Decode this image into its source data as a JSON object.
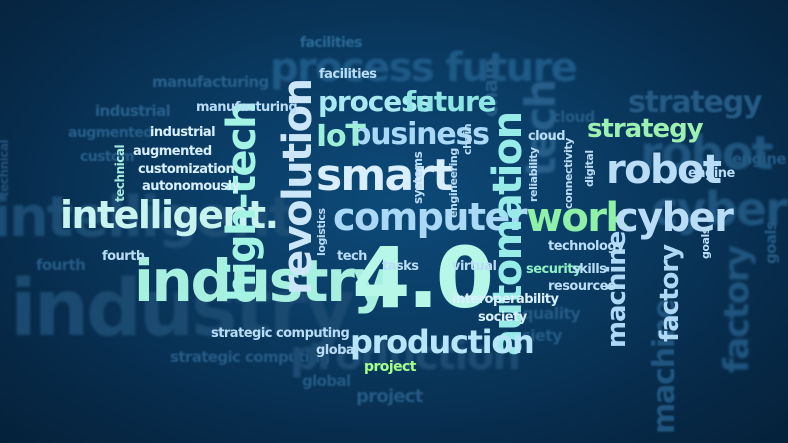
{
  "colors": {
    "background": "#0a3d66",
    "light_blue": "#9fd3f5",
    "pale_blue": "#cfe9fb",
    "cyan": "#8ff2ee",
    "green": "#8ef0a8",
    "lime": "#a6ff8a",
    "ghost": "#2a6a96"
  },
  "words": [
    {
      "text": "industry",
      "color": "#a7f0e0",
      "size": 58,
      "weight": "bold",
      "rot": 0
    },
    {
      "text": "4.0",
      "color": "#b7f7e8",
      "size": 84,
      "weight": "bold",
      "rot": 0
    },
    {
      "text": "intelligent.",
      "color": "#c8f4f0",
      "size": 38,
      "weight": "bold",
      "rot": 0
    },
    {
      "text": "computer",
      "color": "#a9d9f7",
      "size": 38,
      "weight": "bold",
      "rot": 0
    },
    {
      "text": "smart",
      "color": "#d9efff",
      "size": 44,
      "weight": "bold",
      "rot": 0
    },
    {
      "text": "revolution",
      "color": "#cde7fa",
      "size": 40,
      "weight": "bold",
      "rot": -90
    },
    {
      "text": "high-tech",
      "color": "#a4f4e6",
      "size": 40,
      "weight": "bold",
      "rot": -90
    },
    {
      "text": "automation",
      "color": "#98ece8",
      "size": 40,
      "weight": "bold",
      "rot": -90
    },
    {
      "text": "work",
      "color": "#8ff0a8",
      "size": 40,
      "weight": "bold",
      "rot": 0
    },
    {
      "text": "robot",
      "color": "#b9ddf7",
      "size": 40,
      "weight": "bold",
      "rot": 0
    },
    {
      "text": "cyber",
      "color": "#b9ddf7",
      "size": 40,
      "weight": "bold",
      "rot": 0
    },
    {
      "text": "production",
      "color": "#b7e6fb",
      "size": 32,
      "weight": "bold",
      "rot": 0
    },
    {
      "text": "business",
      "color": "#a9d9f7",
      "size": 30,
      "weight": "bold",
      "rot": 0
    },
    {
      "text": "process",
      "color": "#a9e9f2",
      "size": 28,
      "weight": "bold",
      "rot": 0
    },
    {
      "text": "future",
      "color": "#8ee6e4",
      "size": 28,
      "weight": "bold",
      "rot": 0
    },
    {
      "text": "IoT",
      "color": "#9df0d8",
      "size": 30,
      "weight": "bold",
      "rot": 0
    },
    {
      "text": "strategy",
      "color": "#9cf0b2",
      "size": 26,
      "weight": "bold",
      "rot": 0
    },
    {
      "text": "machine",
      "color": "#aed9f6",
      "size": 26,
      "weight": "bold",
      "rot": -90
    },
    {
      "text": "factory",
      "color": "#aed9f6",
      "size": 26,
      "weight": "bold",
      "rot": -90
    },
    {
      "text": "facilities",
      "color": "#b9ddf7",
      "size": 13,
      "weight": "bold",
      "rot": 0
    },
    {
      "text": "manufacturing",
      "color": "#b9ddf7",
      "size": 13,
      "weight": "bold",
      "rot": 0
    },
    {
      "text": "industrial",
      "color": "#d8f0ff",
      "size": 13,
      "weight": "bold",
      "rot": 0
    },
    {
      "text": "augmented",
      "color": "#d8f0ff",
      "size": 13,
      "weight": "bold",
      "rot": 0
    },
    {
      "text": "customization",
      "color": "#d8f0ff",
      "size": 13,
      "weight": "bold",
      "rot": 0
    },
    {
      "text": "autonomously",
      "color": "#d8f0ff",
      "size": 13,
      "weight": "bold",
      "rot": 0
    },
    {
      "text": "technical",
      "color": "#a4ecde",
      "size": 12,
      "weight": "bold",
      "rot": -90
    },
    {
      "text": "fourth",
      "color": "#b9ddf7",
      "size": 13,
      "weight": "bold",
      "rot": 0
    },
    {
      "text": "strategic computing",
      "color": "#b9ddf7",
      "size": 13,
      "weight": "bold",
      "rot": 0
    },
    {
      "text": "logistics",
      "color": "#b9ddf7",
      "size": 11,
      "weight": "bold",
      "rot": -90
    },
    {
      "text": "tech",
      "color": "#b9ddf7",
      "size": 13,
      "weight": "bold",
      "rot": 0
    },
    {
      "text": "tasks",
      "color": "#b9ddf7",
      "size": 13,
      "weight": "bold",
      "rot": 0
    },
    {
      "text": "systems",
      "color": "#b9ddf7",
      "size": 12,
      "weight": "bold",
      "rot": -90
    },
    {
      "text": "engineering",
      "color": "#b9ddf7",
      "size": 11,
      "weight": "bold",
      "rot": -90
    },
    {
      "text": "chain",
      "color": "#b9ddf7",
      "size": 11,
      "weight": "bold",
      "rot": -90
    },
    {
      "text": "cloud",
      "color": "#b9ddf7",
      "size": 13,
      "weight": "bold",
      "rot": 0
    },
    {
      "text": "reliability",
      "color": "#b9ddf7",
      "size": 11,
      "weight": "bold",
      "rot": -90
    },
    {
      "text": "connectivity",
      "color": "#b9ddf7",
      "size": 11,
      "weight": "bold",
      "rot": -90
    },
    {
      "text": "digital",
      "color": "#b9ddf7",
      "size": 11,
      "weight": "bold",
      "rot": -90
    },
    {
      "text": "engine",
      "color": "#b9ddf7",
      "size": 13,
      "weight": "bold",
      "rot": 0
    },
    {
      "text": "technology",
      "color": "#b9ddf7",
      "size": 13,
      "weight": "bold",
      "rot": 0
    },
    {
      "text": "security",
      "color": "#8ef0c4",
      "size": 13,
      "weight": "bold",
      "rot": 0
    },
    {
      "text": "skills",
      "color": "#b9ddf7",
      "size": 13,
      "weight": "bold",
      "rot": 0
    },
    {
      "text": "resources",
      "color": "#b9ddf7",
      "size": 13,
      "weight": "bold",
      "rot": 0
    },
    {
      "text": "goals",
      "color": "#b9ddf7",
      "size": 11,
      "weight": "bold",
      "rot": -90
    },
    {
      "text": "virtual",
      "color": "#b9ddf7",
      "size": 13,
      "weight": "bold",
      "rot": 0
    },
    {
      "text": "interoperability",
      "color": "#d8f0ff",
      "size": 13,
      "weight": "bold",
      "rot": 0
    },
    {
      "text": "society",
      "color": "#d8f0ff",
      "size": 13,
      "weight": "bold",
      "rot": 0
    },
    {
      "text": "global",
      "color": "#b9ddf7",
      "size": 13,
      "weight": "bold",
      "rot": 0
    },
    {
      "text": "project",
      "color": "#a6ff8a",
      "size": 14,
      "weight": "bold",
      "rot": 0
    }
  ],
  "ghosts": [
    {
      "text": "facilities",
      "color": "#2a6a96",
      "size": 14,
      "rot": 0
    },
    {
      "text": "process future",
      "color": "#1e5a86",
      "size": 40,
      "rot": 0
    },
    {
      "text": "manufacturing",
      "color": "#275f8a",
      "size": 15,
      "rot": 0
    },
    {
      "text": "industrial",
      "color": "#275f8a",
      "size": 15,
      "rot": 0
    },
    {
      "text": "augmented",
      "color": "#275f8a",
      "size": 14,
      "rot": 0
    },
    {
      "text": "custom",
      "color": "#275f8a",
      "size": 14,
      "rot": 0
    },
    {
      "text": "technical",
      "color": "#234f78",
      "size": 12,
      "rot": -90
    },
    {
      "text": "intelligent",
      "color": "#1c4d74",
      "size": 56,
      "rot": 0
    },
    {
      "text": "industry",
      "color": "#1b4a70",
      "size": 78,
      "rot": 0
    },
    {
      "text": "fourth",
      "color": "#245a84",
      "size": 15,
      "rot": 0
    },
    {
      "text": "strategic computing",
      "color": "#245a84",
      "size": 15,
      "rot": 0
    },
    {
      "text": "production",
      "color": "#1d4c73",
      "size": 40,
      "rot": 0
    },
    {
      "text": "project",
      "color": "#245a84",
      "size": 18,
      "rot": 0
    },
    {
      "text": "global",
      "color": "#245a84",
      "size": 15,
      "rot": 0
    },
    {
      "text": "strategy",
      "color": "#245a84",
      "size": 30,
      "rot": 0
    },
    {
      "text": "robot",
      "color": "#1f557e",
      "size": 46,
      "rot": 0
    },
    {
      "text": "cyber",
      "color": "#1f557e",
      "size": 46,
      "rot": 0
    },
    {
      "text": "engine",
      "color": "#245a84",
      "size": 15,
      "rot": 0
    },
    {
      "text": "goals",
      "color": "#245a84",
      "size": 15,
      "rot": -90
    },
    {
      "text": "factory",
      "color": "#1f557e",
      "size": 34,
      "rot": -90
    },
    {
      "text": "machine",
      "color": "#1f557e",
      "size": 30,
      "rot": -90
    },
    {
      "text": "society",
      "color": "#245a84",
      "size": 16,
      "rot": 0
    },
    {
      "text": "quality",
      "color": "#245a84",
      "size": 16,
      "rot": 0
    },
    {
      "text": "cloud",
      "color": "#245a84",
      "size": 15,
      "rot": 0
    },
    {
      "text": "tech",
      "color": "#275f8a",
      "size": 42,
      "rot": -90
    },
    {
      "text": "chain",
      "color": "#245a84",
      "size": 20,
      "rot": -90
    }
  ]
}
